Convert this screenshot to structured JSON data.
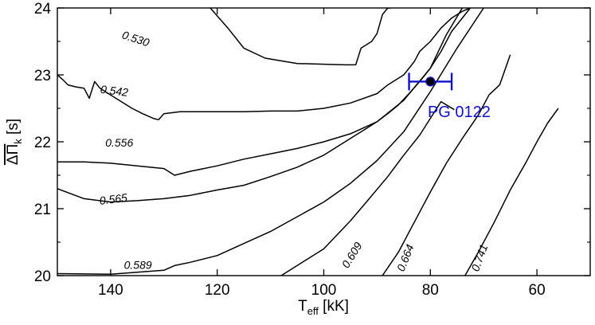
{
  "chart_data": {
    "type": "line",
    "xlabel": {
      "main": "T",
      "sub": "eff",
      "unit": " [kK]"
    },
    "ylabel": {
      "main": "ΔΠ",
      "sub": "k",
      "unit": " [s]"
    },
    "xlim": [
      150,
      50
    ],
    "ylim": [
      20,
      24
    ],
    "xticks": [
      140,
      120,
      100,
      80,
      60
    ],
    "yticks": [
      20,
      21,
      22,
      23,
      24
    ],
    "grid": false,
    "series": [
      {
        "name": "0.530",
        "label_at": [
          138,
          23.55
        ],
        "label_angle": 18,
        "x": [
          121.3,
          118,
          115,
          111,
          105,
          100,
          96,
          94,
          93,
          91,
          90,
          89,
          88,
          87.4
        ],
        "y": [
          24.0,
          23.7,
          23.4,
          23.25,
          23.17,
          23.16,
          23.15,
          23.15,
          23.4,
          23.5,
          23.62,
          23.9,
          24.0,
          24.0
        ]
      },
      {
        "name": "0.542",
        "label_at": [
          142,
          22.73
        ],
        "label_angle": 7,
        "x": [
          150,
          149,
          148,
          146.5,
          145,
          144,
          143,
          142,
          140,
          138,
          136,
          134,
          132,
          131,
          130,
          127,
          120,
          115,
          110,
          105,
          100,
          95,
          90,
          88,
          85,
          83,
          82,
          80,
          78,
          76,
          74,
          72.5
        ],
        "y": [
          23.0,
          22.93,
          22.85,
          22.82,
          22.8,
          22.65,
          22.9,
          22.8,
          22.7,
          22.6,
          22.5,
          22.42,
          22.35,
          22.33,
          22.42,
          22.45,
          22.45,
          22.45,
          22.46,
          22.46,
          22.5,
          22.58,
          22.72,
          22.85,
          23.0,
          23.2,
          23.35,
          23.5,
          23.7,
          23.85,
          23.95,
          24.0
        ]
      },
      {
        "name": "0.556",
        "label_at": [
          141,
          21.93
        ],
        "label_angle": 0,
        "x": [
          150,
          145,
          140,
          135,
          130,
          128,
          125,
          120,
          115,
          110,
          105,
          100,
          95,
          90,
          88,
          86,
          84,
          82,
          80,
          78,
          76,
          74,
          72.5
        ],
        "y": [
          21.7,
          21.7,
          21.68,
          21.64,
          21.6,
          21.5,
          21.56,
          21.64,
          21.74,
          21.82,
          21.9,
          22.0,
          22.12,
          22.3,
          22.42,
          22.55,
          22.72,
          22.9,
          23.1,
          23.35,
          23.65,
          23.85,
          24.0
        ]
      },
      {
        "name": "0.565",
        "label_at": [
          142,
          21.06
        ],
        "label_angle": -7,
        "x": [
          150,
          145,
          140,
          135,
          130,
          125,
          120,
          115,
          110,
          105,
          100,
          95,
          92,
          90,
          85,
          80,
          77,
          74
        ],
        "y": [
          21.3,
          21.15,
          21.1,
          21.12,
          21.15,
          21.2,
          21.28,
          21.35,
          21.48,
          21.62,
          21.8,
          22.05,
          22.2,
          22.3,
          22.62,
          23.1,
          23.6,
          24.0
        ]
      },
      {
        "name": "0.589",
        "label_at": [
          137.5,
          20.1
        ],
        "label_angle": 0,
        "x": [
          150,
          140,
          135,
          130,
          128,
          125,
          120,
          115,
          110,
          105,
          100,
          95,
          90,
          85,
          80,
          75,
          70
        ],
        "y": [
          20.03,
          20.02,
          20.05,
          20.08,
          20.15,
          20.2,
          20.3,
          20.48,
          20.66,
          20.88,
          21.1,
          21.38,
          21.72,
          22.15,
          22.75,
          23.4,
          24.0
        ]
      },
      {
        "name": "0.609",
        "label_at": [
          95.5,
          20.1
        ],
        "label_angle": -58,
        "x": [
          108,
          100,
          95,
          92,
          88,
          85,
          82,
          80,
          78,
          75.5
        ],
        "y": [
          20.0,
          20.4,
          20.82,
          21.1,
          21.48,
          21.8,
          22.1,
          22.35,
          22.6,
          22.48
        ]
      },
      {
        "name": "0.664",
        "label_at": [
          85,
          20.05
        ],
        "label_angle": -68,
        "x": [
          89,
          86,
          83,
          80,
          77,
          74,
          71,
          69,
          67,
          65
        ],
        "y": [
          20.0,
          20.35,
          20.8,
          21.25,
          21.68,
          22.05,
          22.4,
          22.7,
          22.85,
          23.3
        ]
      },
      {
        "name": "0.741",
        "label_at": [
          71,
          20.05
        ],
        "label_angle": -70,
        "x": [
          73.5,
          71,
          68,
          65,
          62,
          60,
          58,
          56
        ],
        "y": [
          20.0,
          20.35,
          20.8,
          21.28,
          21.7,
          22.0,
          22.28,
          22.5
        ]
      }
    ],
    "annotations": [
      {
        "name": "PG 0122",
        "x": 80,
        "y": 22.9,
        "xerr": [
          84,
          76
        ],
        "color": "#1010c8",
        "label_at": [
          80.5,
          22.45
        ]
      }
    ]
  }
}
